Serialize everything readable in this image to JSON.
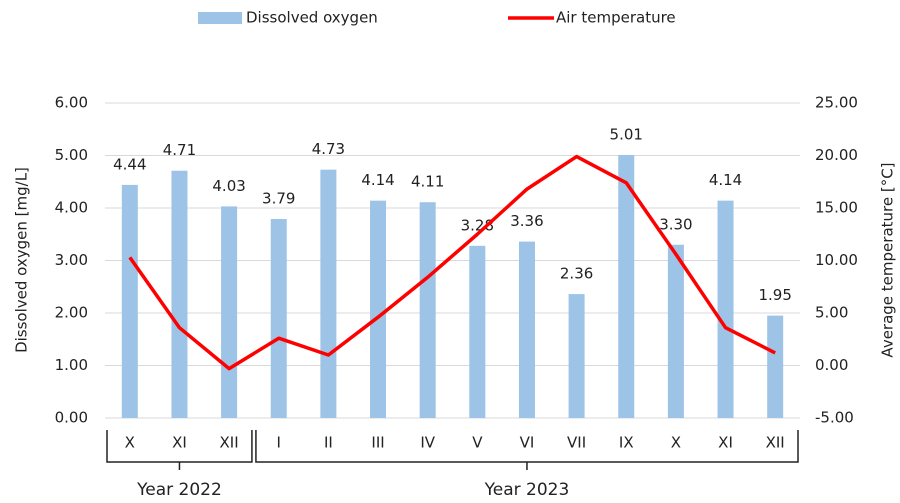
{
  "chart_data": {
    "type": "bar-line",
    "categories": [
      "X",
      "XI",
      "XII",
      "I",
      "II",
      "III",
      "IV",
      "V",
      "VI",
      "VII",
      "IX",
      "X",
      "XI",
      "XII"
    ],
    "groups": [
      {
        "label": "Year 2022",
        "count": 3
      },
      {
        "label": "Year 2023",
        "count": 11
      }
    ],
    "series": [
      {
        "name": "Dissolved oxygen",
        "type": "bar",
        "color": "#9dc3e6",
        "values": [
          4.44,
          4.71,
          4.03,
          3.79,
          4.73,
          4.14,
          4.11,
          3.28,
          3.36,
          2.36,
          5.01,
          3.3,
          4.14,
          1.95
        ],
        "value_labels": [
          "4.44",
          "4.71",
          "4.03",
          "3.79",
          "4.73",
          "4.14",
          "4.11",
          "3.28",
          "3.36",
          "2.36",
          "5.01",
          "3.30",
          "4.14",
          "1.95"
        ]
      },
      {
        "name": "Air temperature",
        "type": "line",
        "axis": "y2",
        "color": "#ff0000",
        "values": [
          10.3,
          3.6,
          -0.3,
          2.6,
          1.0,
          4.6,
          8.4,
          12.5,
          16.8,
          19.9,
          17.4,
          10.6,
          3.6,
          1.2
        ]
      }
    ],
    "ylabel": "Dissolved oxygen [mg/L]",
    "y2label": "Average temperature [°C]",
    "ylim": [
      0,
      6
    ],
    "yticks": [
      {
        "value": 0,
        "label": "0.00"
      },
      {
        "value": 1,
        "label": "1.00"
      },
      {
        "value": 2,
        "label": "2.00"
      },
      {
        "value": 3,
        "label": "3.00"
      },
      {
        "value": 4,
        "label": "4.00"
      },
      {
        "value": 5,
        "label": "5.00"
      },
      {
        "value": 6,
        "label": "6.00"
      }
    ],
    "y2lim": [
      -5,
      25
    ],
    "y2ticks": [
      {
        "value": -5,
        "label": "-5.00"
      },
      {
        "value": 0,
        "label": "0.00"
      },
      {
        "value": 5,
        "label": "5.00"
      },
      {
        "value": 10,
        "label": "10.00"
      },
      {
        "value": 15,
        "label": "15.00"
      },
      {
        "value": 20,
        "label": "20.00"
      },
      {
        "value": 25,
        "label": "25.00"
      }
    ],
    "grid": true
  }
}
